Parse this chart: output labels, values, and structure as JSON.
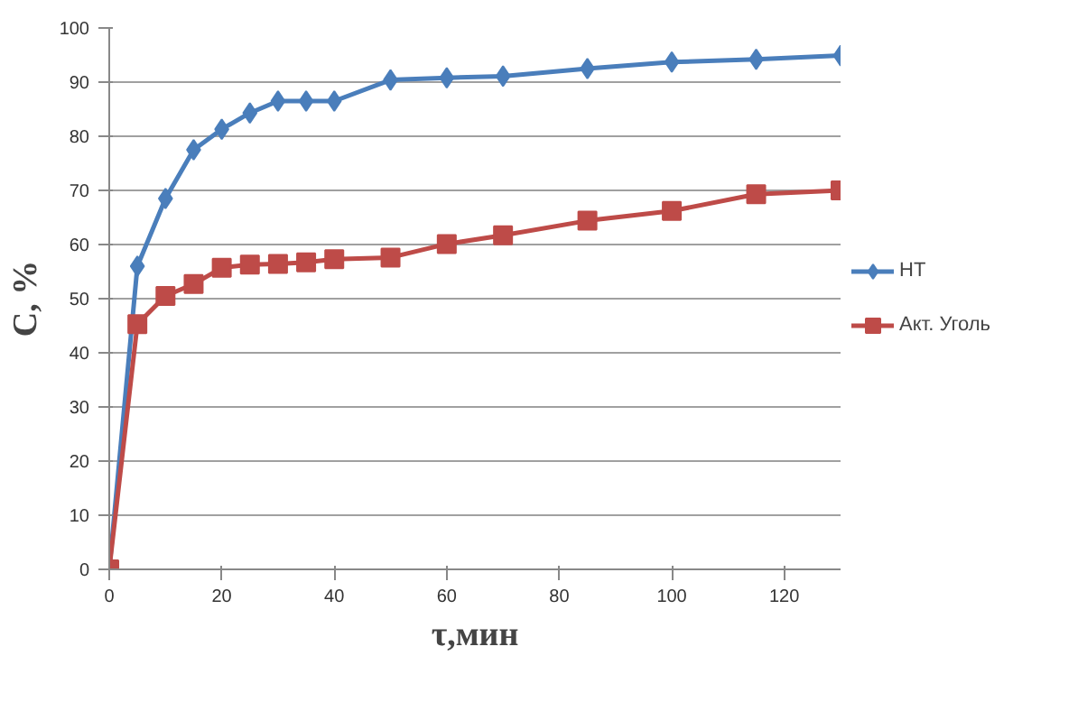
{
  "chart_data": {
    "type": "line",
    "xlabel": "τ,мин",
    "ylabel": "С, %",
    "x": [
      0,
      5,
      10,
      15,
      20,
      25,
      30,
      35,
      40,
      50,
      60,
      70,
      85,
      100,
      115,
      130
    ],
    "series": [
      {
        "name": "НТ",
        "color": "#4a7ebb",
        "marker": "diamond",
        "values": [
          0,
          56,
          68.5,
          77.5,
          81.3,
          84.3,
          86.5,
          86.5,
          86.5,
          90.4,
          90.8,
          91.1,
          92.5,
          93.7,
          94.2,
          94.9
        ]
      },
      {
        "name": "Акт. Уголь",
        "color": "#be4b48",
        "marker": "square",
        "values": [
          0,
          45.3,
          50.5,
          52.7,
          55.7,
          56.3,
          56.4,
          56.7,
          57.3,
          57.6,
          60.1,
          61.7,
          64.4,
          66.2,
          69.3,
          70
        ]
      }
    ],
    "xlim": [
      0,
      130
    ],
    "xticks": [
      0,
      20,
      40,
      60,
      80,
      100,
      120
    ],
    "ylim": [
      0,
      100
    ],
    "yticks": [
      0,
      10,
      20,
      30,
      40,
      50,
      60,
      70,
      80,
      90,
      100
    ],
    "grid": "y",
    "legend": "right",
    "line_style": "solid"
  }
}
